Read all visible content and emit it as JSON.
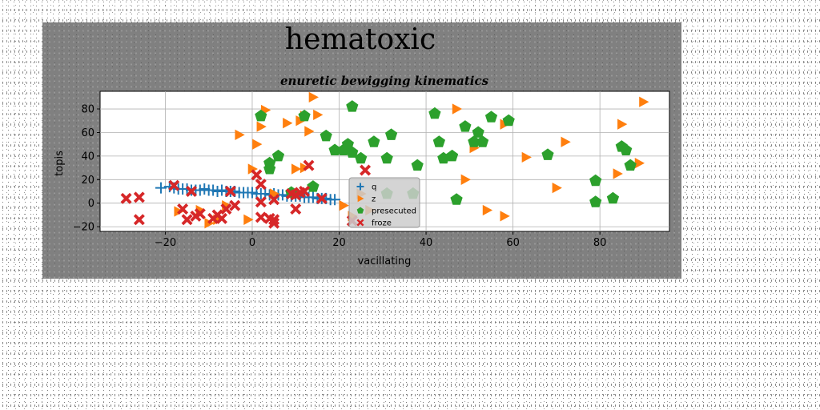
{
  "chart_data": {
    "type": "scatter",
    "suptitle": "hematoxic",
    "title": "enuretic bewigging kinematics",
    "xlabel": "vacillating",
    "ylabel": "topis",
    "xlim": [
      -35,
      96
    ],
    "ylim": [
      -24,
      95
    ],
    "xticks": [
      -20,
      0,
      20,
      40,
      60,
      80
    ],
    "yticks": [
      -20,
      0,
      20,
      40,
      60,
      80
    ],
    "grid": true,
    "legend_position": "lower-center",
    "series": [
      {
        "name": "q",
        "marker": "plus",
        "color": "#1f77b4",
        "points": [
          [
            -21,
            13
          ],
          [
            -19,
            14
          ],
          [
            -18,
            13
          ],
          [
            -17,
            12
          ],
          [
            -16,
            12
          ],
          [
            -15,
            12
          ],
          [
            -14,
            11
          ],
          [
            -13,
            11
          ],
          [
            -12,
            11
          ],
          [
            -11,
            12
          ],
          [
            -10,
            11
          ],
          [
            -9,
            11
          ],
          [
            -8,
            10
          ],
          [
            -7,
            11
          ],
          [
            -6,
            10
          ],
          [
            -5,
            10
          ],
          [
            -4,
            10
          ],
          [
            -3,
            9
          ],
          [
            -2,
            9
          ],
          [
            -1,
            9
          ],
          [
            0,
            9
          ],
          [
            1,
            8
          ],
          [
            2,
            8
          ],
          [
            3,
            8
          ],
          [
            4,
            7
          ],
          [
            5,
            8
          ],
          [
            6,
            7
          ],
          [
            7,
            7
          ],
          [
            8,
            6
          ],
          [
            9,
            6
          ],
          [
            10,
            6
          ],
          [
            11,
            6
          ],
          [
            12,
            5
          ],
          [
            13,
            5
          ],
          [
            14,
            5
          ],
          [
            15,
            4
          ],
          [
            16,
            4
          ],
          [
            17,
            4
          ],
          [
            18,
            3
          ],
          [
            19,
            3
          ]
        ]
      },
      {
        "name": "z",
        "marker": "triangle-right",
        "color": "#ff7f0e",
        "points": [
          [
            -17,
            -7
          ],
          [
            -12,
            -6
          ],
          [
            -10,
            -17
          ],
          [
            -8,
            -14
          ],
          [
            -6,
            -2
          ],
          [
            -3,
            58
          ],
          [
            -1,
            -14
          ],
          [
            0,
            29
          ],
          [
            1,
            50
          ],
          [
            2,
            65
          ],
          [
            3,
            79
          ],
          [
            4,
            30
          ],
          [
            5,
            8
          ],
          [
            8,
            68
          ],
          [
            10,
            29
          ],
          [
            11,
            70
          ],
          [
            12,
            74
          ],
          [
            12,
            30
          ],
          [
            13,
            61
          ],
          [
            14,
            90
          ],
          [
            15,
            75
          ],
          [
            21,
            -2
          ],
          [
            23,
            -11
          ],
          [
            25,
            8
          ],
          [
            27,
            -6
          ],
          [
            47,
            80
          ],
          [
            49,
            20
          ],
          [
            51,
            47
          ],
          [
            54,
            -6
          ],
          [
            58,
            -11
          ],
          [
            58,
            67
          ],
          [
            63,
            39
          ],
          [
            70,
            13
          ],
          [
            72,
            52
          ],
          [
            84,
            25
          ],
          [
            85,
            67
          ],
          [
            89,
            34
          ],
          [
            90,
            86
          ]
        ]
      },
      {
        "name": "presecuted",
        "marker": "pentagon",
        "color": "#2ca02c",
        "points": [
          [
            2,
            74
          ],
          [
            4,
            29
          ],
          [
            4,
            34
          ],
          [
            6,
            40
          ],
          [
            9,
            9
          ],
          [
            12,
            74
          ],
          [
            14,
            14
          ],
          [
            17,
            57
          ],
          [
            19,
            45
          ],
          [
            21,
            45
          ],
          [
            22,
            50
          ],
          [
            23,
            82
          ],
          [
            23,
            43
          ],
          [
            25,
            38
          ],
          [
            28,
            52
          ],
          [
            31,
            8
          ],
          [
            31,
            38
          ],
          [
            32,
            58
          ],
          [
            37,
            8
          ],
          [
            38,
            32
          ],
          [
            42,
            76
          ],
          [
            43,
            52
          ],
          [
            44,
            38
          ],
          [
            46,
            40
          ],
          [
            47,
            3
          ],
          [
            49,
            65
          ],
          [
            51,
            52
          ],
          [
            52,
            60
          ],
          [
            53,
            52
          ],
          [
            55,
            73
          ],
          [
            59,
            70
          ],
          [
            68,
            41
          ],
          [
            79,
            19
          ],
          [
            79,
            1
          ],
          [
            83,
            4
          ],
          [
            85,
            48
          ],
          [
            86,
            45
          ],
          [
            87,
            32
          ]
        ]
      },
      {
        "name": "froze",
        "marker": "x-filled",
        "color": "#d62728",
        "points": [
          [
            -29,
            4
          ],
          [
            -26,
            5
          ],
          [
            -26,
            -14
          ],
          [
            -18,
            15
          ],
          [
            -16,
            -5
          ],
          [
            -15,
            -14
          ],
          [
            -14,
            10
          ],
          [
            -13,
            -11
          ],
          [
            -12,
            -9
          ],
          [
            -9,
            -13
          ],
          [
            -8,
            -10
          ],
          [
            -7,
            -13
          ],
          [
            -6,
            -5
          ],
          [
            -5,
            10
          ],
          [
            -4,
            -2
          ],
          [
            1,
            24
          ],
          [
            2,
            16
          ],
          [
            2,
            1
          ],
          [
            2,
            -12
          ],
          [
            4,
            -13
          ],
          [
            5,
            -17
          ],
          [
            5,
            -14
          ],
          [
            5,
            3
          ],
          [
            9,
            8
          ],
          [
            10,
            7
          ],
          [
            10,
            -5
          ],
          [
            11,
            9
          ],
          [
            12,
            10
          ],
          [
            13,
            32
          ],
          [
            16,
            4
          ],
          [
            23,
            -15
          ],
          [
            26,
            28
          ]
        ]
      }
    ]
  }
}
